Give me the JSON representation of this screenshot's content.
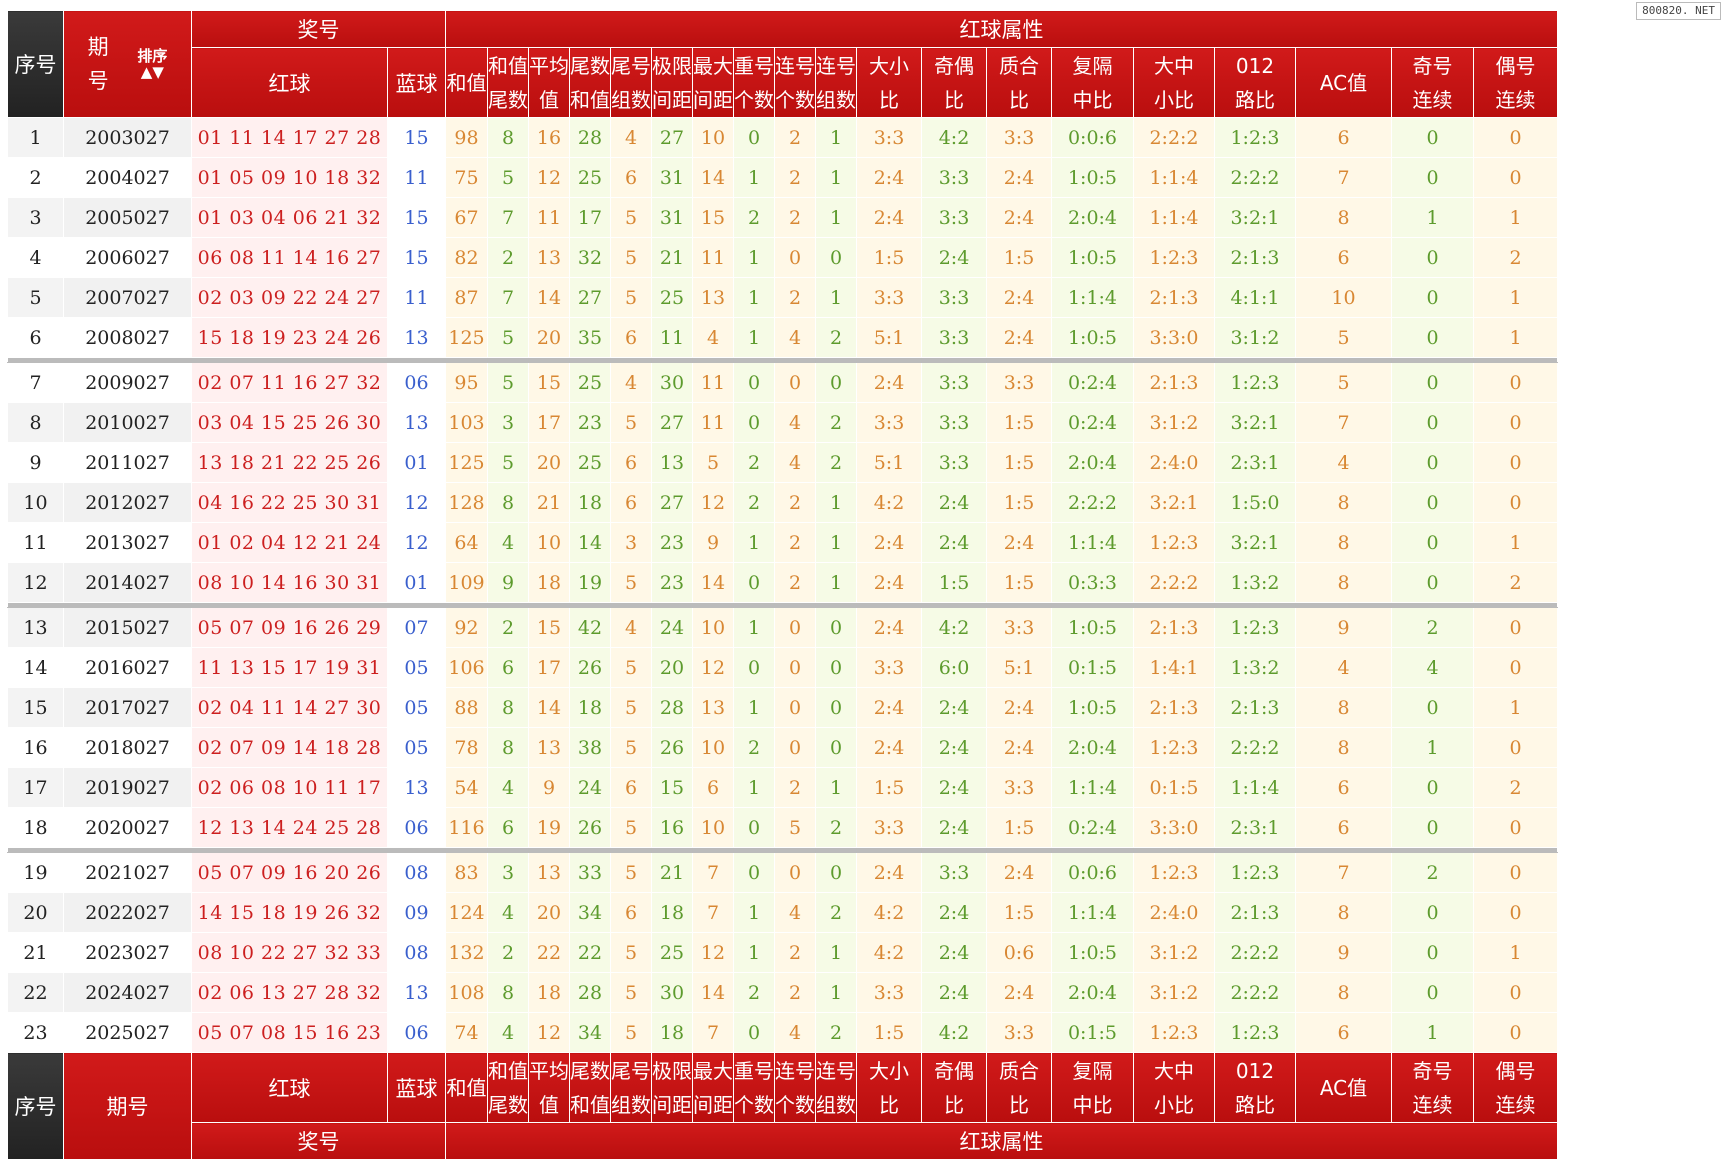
{
  "watermark": "800820. NET",
  "header": {
    "seq": "序号",
    "issue_top": "期",
    "issue_bottom": "号",
    "issue_single": "期号",
    "sort": "排序",
    "sort_arrows": "▲▼",
    "prize": "奖号",
    "red_attr": "红球属性",
    "red": "红球",
    "blue": "蓝球",
    "cols": [
      [
        "和值",
        ""
      ],
      [
        "和值",
        "尾数"
      ],
      [
        "平均",
        "值"
      ],
      [
        "尾数",
        "和值"
      ],
      [
        "尾号",
        "组数"
      ],
      [
        "极限",
        "间距"
      ],
      [
        "最大",
        "间距"
      ],
      [
        "重号",
        "个数"
      ],
      [
        "连号",
        "个数"
      ],
      [
        "连号",
        "组数"
      ],
      [
        "大小",
        "比"
      ],
      [
        "奇偶",
        "比"
      ],
      [
        "质合",
        "比"
      ],
      [
        "复隔",
        "中比"
      ],
      [
        "大中",
        "小比"
      ],
      [
        "012",
        "路比"
      ],
      [
        "AC值",
        ""
      ],
      [
        "奇号",
        "连续"
      ],
      [
        "偶号",
        "连续"
      ]
    ]
  },
  "rows": [
    [
      "1",
      "2003027",
      "01  11  14  17  27  28",
      "15",
      "98",
      "8",
      "16",
      "28",
      "4",
      "27",
      "10",
      "0",
      "2",
      "1",
      "3:3",
      "4:2",
      "3:3",
      "0:0:6",
      "2:2:2",
      "1:2:3",
      "6",
      "0",
      "0"
    ],
    [
      "2",
      "2004027",
      "01  05  09  10  18  32",
      "11",
      "75",
      "5",
      "12",
      "25",
      "6",
      "31",
      "14",
      "1",
      "2",
      "1",
      "2:4",
      "3:3",
      "2:4",
      "1:0:5",
      "1:1:4",
      "2:2:2",
      "7",
      "0",
      "0"
    ],
    [
      "3",
      "2005027",
      "01  03  04  06  21  32",
      "15",
      "67",
      "7",
      "11",
      "17",
      "5",
      "31",
      "15",
      "2",
      "2",
      "1",
      "2:4",
      "3:3",
      "2:4",
      "2:0:4",
      "1:1:4",
      "3:2:1",
      "8",
      "1",
      "1"
    ],
    [
      "4",
      "2006027",
      "06  08  11  14  16  27",
      "15",
      "82",
      "2",
      "13",
      "32",
      "5",
      "21",
      "11",
      "1",
      "0",
      "0",
      "1:5",
      "2:4",
      "1:5",
      "1:0:5",
      "1:2:3",
      "2:1:3",
      "6",
      "0",
      "2"
    ],
    [
      "5",
      "2007027",
      "02  03  09  22  24  27",
      "11",
      "87",
      "7",
      "14",
      "27",
      "5",
      "25",
      "13",
      "1",
      "2",
      "1",
      "3:3",
      "3:3",
      "2:4",
      "1:1:4",
      "2:1:3",
      "4:1:1",
      "10",
      "0",
      "1"
    ],
    [
      "6",
      "2008027",
      "15  18  19  23  24  26",
      "13",
      "125",
      "5",
      "20",
      "35",
      "6",
      "11",
      "4",
      "1",
      "4",
      "2",
      "5:1",
      "3:3",
      "2:4",
      "1:0:5",
      "3:3:0",
      "3:1:2",
      "5",
      "0",
      "1"
    ],
    [
      "7",
      "2009027",
      "02  07  11  16  27  32",
      "06",
      "95",
      "5",
      "15",
      "25",
      "4",
      "30",
      "11",
      "0",
      "0",
      "0",
      "2:4",
      "3:3",
      "3:3",
      "0:2:4",
      "2:1:3",
      "1:2:3",
      "5",
      "0",
      "0"
    ],
    [
      "8",
      "2010027",
      "03  04  15  25  26  30",
      "13",
      "103",
      "3",
      "17",
      "23",
      "5",
      "27",
      "11",
      "0",
      "4",
      "2",
      "3:3",
      "3:3",
      "1:5",
      "0:2:4",
      "3:1:2",
      "3:2:1",
      "7",
      "0",
      "0"
    ],
    [
      "9",
      "2011027",
      "13  18  21  22  25  26",
      "01",
      "125",
      "5",
      "20",
      "25",
      "6",
      "13",
      "5",
      "2",
      "4",
      "2",
      "5:1",
      "3:3",
      "1:5",
      "2:0:4",
      "2:4:0",
      "2:3:1",
      "4",
      "0",
      "0"
    ],
    [
      "10",
      "2012027",
      "04  16  22  25  30  31",
      "12",
      "128",
      "8",
      "21",
      "18",
      "6",
      "27",
      "12",
      "2",
      "2",
      "1",
      "4:2",
      "2:4",
      "1:5",
      "2:2:2",
      "3:2:1",
      "1:5:0",
      "8",
      "0",
      "0"
    ],
    [
      "11",
      "2013027",
      "01  02  04  12  21  24",
      "12",
      "64",
      "4",
      "10",
      "14",
      "3",
      "23",
      "9",
      "1",
      "2",
      "1",
      "2:4",
      "2:4",
      "2:4",
      "1:1:4",
      "1:2:3",
      "3:2:1",
      "8",
      "0",
      "1"
    ],
    [
      "12",
      "2014027",
      "08  10  14  16  30  31",
      "01",
      "109",
      "9",
      "18",
      "19",
      "5",
      "23",
      "14",
      "0",
      "2",
      "1",
      "2:4",
      "1:5",
      "1:5",
      "0:3:3",
      "2:2:2",
      "1:3:2",
      "8",
      "0",
      "2"
    ],
    [
      "13",
      "2015027",
      "05  07  09  16  26  29",
      "07",
      "92",
      "2",
      "15",
      "42",
      "4",
      "24",
      "10",
      "1",
      "0",
      "0",
      "2:4",
      "4:2",
      "3:3",
      "1:0:5",
      "2:1:3",
      "1:2:3",
      "9",
      "2",
      "0"
    ],
    [
      "14",
      "2016027",
      "11  13  15  17  19  31",
      "05",
      "106",
      "6",
      "17",
      "26",
      "5",
      "20",
      "12",
      "0",
      "0",
      "0",
      "3:3",
      "6:0",
      "5:1",
      "0:1:5",
      "1:4:1",
      "1:3:2",
      "4",
      "4",
      "0"
    ],
    [
      "15",
      "2017027",
      "02  04  11  14  27  30",
      "05",
      "88",
      "8",
      "14",
      "18",
      "5",
      "28",
      "13",
      "1",
      "0",
      "0",
      "2:4",
      "2:4",
      "2:4",
      "1:0:5",
      "2:1:3",
      "2:1:3",
      "8",
      "0",
      "1"
    ],
    [
      "16",
      "2018027",
      "02  07  09  14  18  28",
      "05",
      "78",
      "8",
      "13",
      "38",
      "5",
      "26",
      "10",
      "2",
      "0",
      "0",
      "2:4",
      "2:4",
      "2:4",
      "2:0:4",
      "1:2:3",
      "2:2:2",
      "8",
      "1",
      "0"
    ],
    [
      "17",
      "2019027",
      "02  06  08  10  11  17",
      "13",
      "54",
      "4",
      "9",
      "24",
      "6",
      "15",
      "6",
      "1",
      "2",
      "1",
      "1:5",
      "2:4",
      "3:3",
      "1:1:4",
      "0:1:5",
      "1:1:4",
      "6",
      "0",
      "2"
    ],
    [
      "18",
      "2020027",
      "12  13  14  24  25  28",
      "06",
      "116",
      "6",
      "19",
      "26",
      "5",
      "16",
      "10",
      "0",
      "5",
      "2",
      "3:3",
      "2:4",
      "1:5",
      "0:2:4",
      "3:3:0",
      "2:3:1",
      "6",
      "0",
      "0"
    ],
    [
      "19",
      "2021027",
      "05  07  09  16  20  26",
      "08",
      "83",
      "3",
      "13",
      "33",
      "5",
      "21",
      "7",
      "0",
      "0",
      "0",
      "2:4",
      "3:3",
      "2:4",
      "0:0:6",
      "1:2:3",
      "1:2:3",
      "7",
      "2",
      "0"
    ],
    [
      "20",
      "2022027",
      "14  15  18  19  26  32",
      "09",
      "124",
      "4",
      "20",
      "34",
      "6",
      "18",
      "7",
      "1",
      "4",
      "2",
      "4:2",
      "2:4",
      "1:5",
      "1:1:4",
      "2:4:0",
      "2:1:3",
      "8",
      "0",
      "0"
    ],
    [
      "21",
      "2023027",
      "08  10  22  27  32  33",
      "08",
      "132",
      "2",
      "22",
      "22",
      "5",
      "25",
      "12",
      "1",
      "2",
      "1",
      "4:2",
      "2:4",
      "0:6",
      "1:0:5",
      "3:1:2",
      "2:2:2",
      "9",
      "0",
      "1"
    ],
    [
      "22",
      "2024027",
      "02  06  13  27  28  32",
      "13",
      "108",
      "8",
      "18",
      "28",
      "5",
      "30",
      "14",
      "2",
      "2",
      "1",
      "3:3",
      "2:4",
      "2:4",
      "2:0:4",
      "3:1:2",
      "2:2:2",
      "8",
      "0",
      "0"
    ],
    [
      "23",
      "2025027",
      "05  07  08  15  16  23",
      "06",
      "74",
      "4",
      "12",
      "34",
      "5",
      "18",
      "7",
      "0",
      "4",
      "2",
      "1:5",
      "4:2",
      "3:3",
      "0:1:5",
      "1:2:3",
      "1:2:3",
      "6",
      "1",
      "0"
    ]
  ]
}
